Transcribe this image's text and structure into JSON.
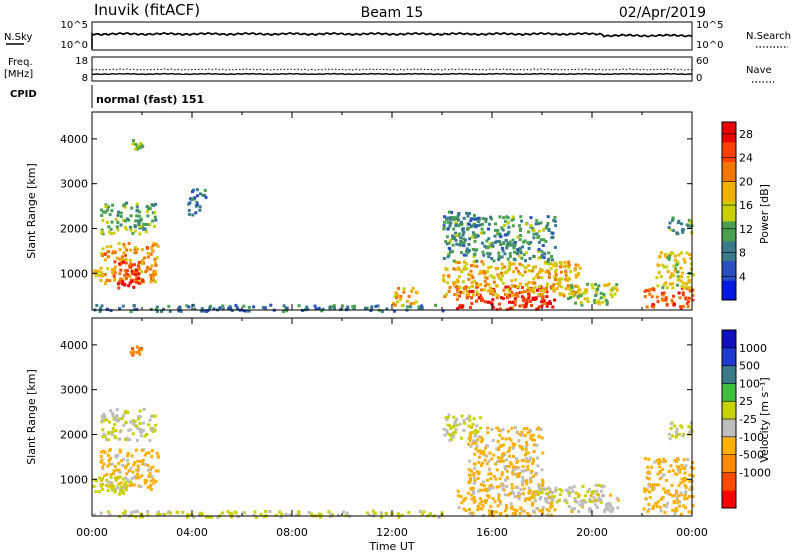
{
  "header": {
    "station": "Inuvik (fitACF)",
    "beam": "Beam 15",
    "date": "02/Apr/2019"
  },
  "panel_sky": {
    "left_label": "N.Sky",
    "left_ticks": [
      "10^5",
      "10^0"
    ],
    "right_ticks": [
      "10^5",
      "10^0"
    ],
    "right_label": "N.Search"
  },
  "panel_freq": {
    "left_label_1": "Freq.",
    "left_label_2": "[MHz]",
    "left_ticks": [
      "18",
      "8"
    ],
    "right_ticks": [
      "60",
      "0"
    ],
    "right_label": "Nave",
    "cpid_label": "CPID",
    "cpid_value": "normal (fast) 151"
  },
  "colors": {
    "power_scale": [
      "#0018e0",
      "#2850c0",
      "#3a7a8a",
      "#48a050",
      "#c8d000",
      "#f0b000",
      "#f07800",
      "#ff4000",
      "#e80000"
    ],
    "velocity_scale": [
      "#ff0000",
      "#ff4a00",
      "#ff8c00",
      "#ffb000",
      "#bdbdbd",
      "#c8d200",
      "#40c040",
      "#3a7a8a",
      "#1e3ad0",
      "#1010c0"
    ]
  },
  "chart_data": [
    {
      "type": "heatmap",
      "name": "power",
      "xlabel": "",
      "ylabel": "Slant Range [km]",
      "x_ticks": [
        "00:00",
        "04:00",
        "08:00",
        "12:00",
        "16:00",
        "20:00",
        "00:00"
      ],
      "y_ticks": [
        1000,
        2000,
        3000,
        4000
      ],
      "ylim": [
        180,
        4600
      ],
      "colorbar": {
        "label": "Power [dB]",
        "ticks": [
          4,
          8,
          12,
          16,
          20,
          24,
          28
        ],
        "range": [
          0,
          30
        ]
      },
      "regions": [
        {
          "t": [
            0.3,
            2.6
          ],
          "r": [
            800,
            1700
          ],
          "value": 20
        },
        {
          "t": [
            1.0,
            2.0
          ],
          "r": [
            700,
            1300
          ],
          "value": 27
        },
        {
          "t": [
            0.0,
            0.4
          ],
          "r": [
            900,
            1100
          ],
          "value": 18
        },
        {
          "t": [
            0.3,
            2.5
          ],
          "r": [
            1900,
            2600
          ],
          "value": 12
        },
        {
          "t": [
            1.5,
            2.0
          ],
          "r": [
            3800,
            4000
          ],
          "value": 14
        },
        {
          "t": [
            14.5,
            18.5
          ],
          "r": [
            220,
            750
          ],
          "value": 27
        },
        {
          "t": [
            14.0,
            19.5
          ],
          "r": [
            500,
            1300
          ],
          "value": 18
        },
        {
          "t": [
            14.0,
            18.5
          ],
          "r": [
            1300,
            2300
          ],
          "value": 10
        },
        {
          "t": [
            14.0,
            15.5
          ],
          "r": [
            2000,
            2400
          ],
          "value": 8
        },
        {
          "t": [
            19.0,
            21.0
          ],
          "r": [
            300,
            800
          ],
          "value": 14
        },
        {
          "t": [
            22.0,
            24.0
          ],
          "r": [
            250,
            700
          ],
          "value": 24
        },
        {
          "t": [
            22.5,
            24.0
          ],
          "r": [
            700,
            1500
          ],
          "value": 16
        },
        {
          "t": [
            23.0,
            24.0
          ],
          "r": [
            1900,
            2300
          ],
          "value": 10
        },
        {
          "t": [
            0.0,
            14.0
          ],
          "r": [
            180,
            320
          ],
          "value": 8
        },
        {
          "t": [
            3.8,
            4.5
          ],
          "r": [
            2300,
            2900
          ],
          "value": 8
        },
        {
          "t": [
            12.0,
            13.0
          ],
          "r": [
            300,
            700
          ],
          "value": 18
        }
      ]
    },
    {
      "type": "heatmap",
      "name": "velocity",
      "xlabel": "Time UT",
      "ylabel": "Slant Range [km]",
      "x_ticks": [
        "00:00",
        "04:00",
        "08:00",
        "12:00",
        "16:00",
        "20:00",
        "00:00"
      ],
      "y_ticks": [
        1000,
        2000,
        3000,
        4000
      ],
      "ylim": [
        180,
        4600
      ],
      "colorbar": {
        "label": "Velocity [m s⁻¹]",
        "ticks": [
          1000,
          500,
          100,
          25,
          -25,
          -100,
          -500,
          -1000
        ],
        "range": [
          -1200,
          1200
        ]
      },
      "regions": [
        {
          "t": [
            0.3,
            2.6
          ],
          "r": [
            800,
            1700
          ],
          "value": -300
        },
        {
          "t": [
            0.0,
            1.5
          ],
          "r": [
            700,
            1100
          ],
          "value": 100
        },
        {
          "t": [
            0.3,
            2.5
          ],
          "r": [
            1900,
            2600
          ],
          "value": 0
        },
        {
          "t": [
            1.5,
            2.0
          ],
          "r": [
            3800,
            4000
          ],
          "value": -700
        },
        {
          "t": [
            14.5,
            18.5
          ],
          "r": [
            220,
            800
          ],
          "value": -300
        },
        {
          "t": [
            15.0,
            18.0
          ],
          "r": [
            800,
            2200
          ],
          "value": -300
        },
        {
          "t": [
            17.5,
            20.5
          ],
          "r": [
            500,
            900
          ],
          "value": 0
        },
        {
          "t": [
            19.0,
            21.0
          ],
          "r": [
            300,
            700
          ],
          "value": -150
        },
        {
          "t": [
            22.0,
            24.0
          ],
          "r": [
            250,
            1500
          ],
          "value": -300
        },
        {
          "t": [
            23.0,
            24.0
          ],
          "r": [
            1900,
            2300
          ],
          "value": 0
        },
        {
          "t": [
            0.0,
            14.0
          ],
          "r": [
            180,
            320
          ],
          "value": 50
        },
        {
          "t": [
            14.0,
            15.5
          ],
          "r": [
            1900,
            2500
          ],
          "value": 0
        }
      ]
    }
  ]
}
